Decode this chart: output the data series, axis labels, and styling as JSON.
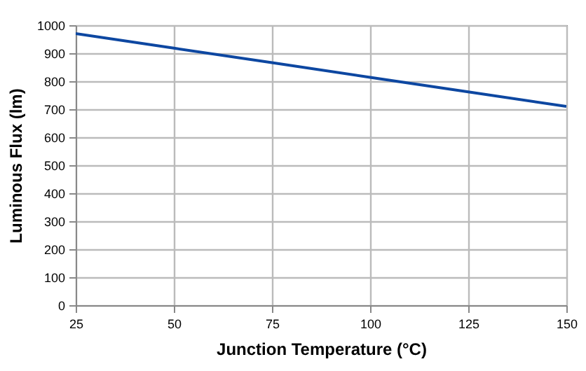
{
  "chart_data": {
    "type": "line",
    "xlabel": "Junction Temperature (°C)",
    "ylabel": "Luminous Flux (lm)",
    "x": [
      25,
      50,
      75,
      100,
      125,
      150
    ],
    "series": [
      {
        "color": "#0d47a1",
        "values": [
          970,
          918,
          866,
          814,
          762,
          710
        ]
      }
    ],
    "xlim": [
      25,
      150
    ],
    "xticks": [
      25,
      50,
      75,
      100,
      125,
      150
    ],
    "ylim": [
      0,
      1000
    ],
    "yticks": [
      0,
      100,
      200,
      300,
      400,
      500,
      600,
      700,
      800,
      900,
      1000
    ],
    "grid": true,
    "marker": "none",
    "line_style": "solid"
  }
}
